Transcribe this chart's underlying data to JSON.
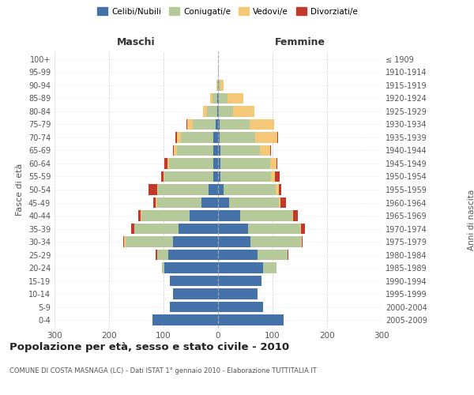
{
  "age_groups": [
    "0-4",
    "5-9",
    "10-14",
    "15-19",
    "20-24",
    "25-29",
    "30-34",
    "35-39",
    "40-44",
    "45-49",
    "50-54",
    "55-59",
    "60-64",
    "65-69",
    "70-74",
    "75-79",
    "80-84",
    "85-89",
    "90-94",
    "95-99",
    "100+"
  ],
  "birth_years": [
    "2005-2009",
    "2000-2004",
    "1995-1999",
    "1990-1994",
    "1985-1989",
    "1980-1984",
    "1975-1979",
    "1970-1974",
    "1965-1969",
    "1960-1964",
    "1955-1959",
    "1950-1954",
    "1945-1949",
    "1940-1944",
    "1935-1939",
    "1930-1934",
    "1925-1929",
    "1920-1924",
    "1915-1919",
    "1910-1914",
    "≤ 1909"
  ],
  "males": {
    "celibi": [
      120,
      88,
      82,
      88,
      98,
      92,
      82,
      72,
      52,
      30,
      18,
      8,
      8,
      8,
      8,
      5,
      2,
      2,
      0,
      0,
      0
    ],
    "coniugati": [
      0,
      0,
      0,
      0,
      5,
      20,
      88,
      82,
      88,
      82,
      92,
      90,
      82,
      68,
      60,
      42,
      18,
      8,
      2,
      0,
      0
    ],
    "vedovi": [
      0,
      0,
      0,
      0,
      0,
      0,
      2,
      0,
      2,
      2,
      2,
      2,
      3,
      5,
      8,
      10,
      8,
      5,
      1,
      0,
      0
    ],
    "divorziati": [
      0,
      0,
      0,
      0,
      0,
      2,
      2,
      5,
      5,
      5,
      15,
      5,
      5,
      2,
      2,
      1,
      0,
      0,
      0,
      0,
      0
    ]
  },
  "females": {
    "nubili": [
      120,
      82,
      72,
      80,
      82,
      72,
      60,
      55,
      40,
      20,
      10,
      5,
      5,
      5,
      3,
      3,
      2,
      2,
      1,
      0,
      0
    ],
    "coniugate": [
      0,
      0,
      0,
      0,
      25,
      55,
      92,
      95,
      96,
      92,
      96,
      92,
      90,
      72,
      65,
      55,
      25,
      15,
      4,
      1,
      0
    ],
    "vedove": [
      0,
      0,
      0,
      0,
      0,
      0,
      1,
      2,
      2,
      3,
      5,
      8,
      12,
      18,
      40,
      45,
      40,
      30,
      5,
      1,
      0
    ],
    "divorziate": [
      0,
      0,
      0,
      0,
      0,
      2,
      2,
      8,
      8,
      10,
      5,
      8,
      2,
      2,
      2,
      0,
      0,
      0,
      0,
      0,
      0
    ]
  },
  "colors": {
    "celibi": "#4472a8",
    "coniugati": "#b5c99a",
    "vedovi": "#f5c878",
    "divorziati": "#c0392b"
  },
  "xlim": 300,
  "title": "Popolazione per età, sesso e stato civile - 2010",
  "subtitle": "COMUNE DI COSTA MASNAGA (LC) - Dati ISTAT 1° gennaio 2010 - Elaborazione TUTTITALIA.IT",
  "ylabel_left": "Fasce di età",
  "ylabel_right": "Anni di nascita",
  "xlabel_maschi": "Maschi",
  "xlabel_femmine": "Femmine"
}
